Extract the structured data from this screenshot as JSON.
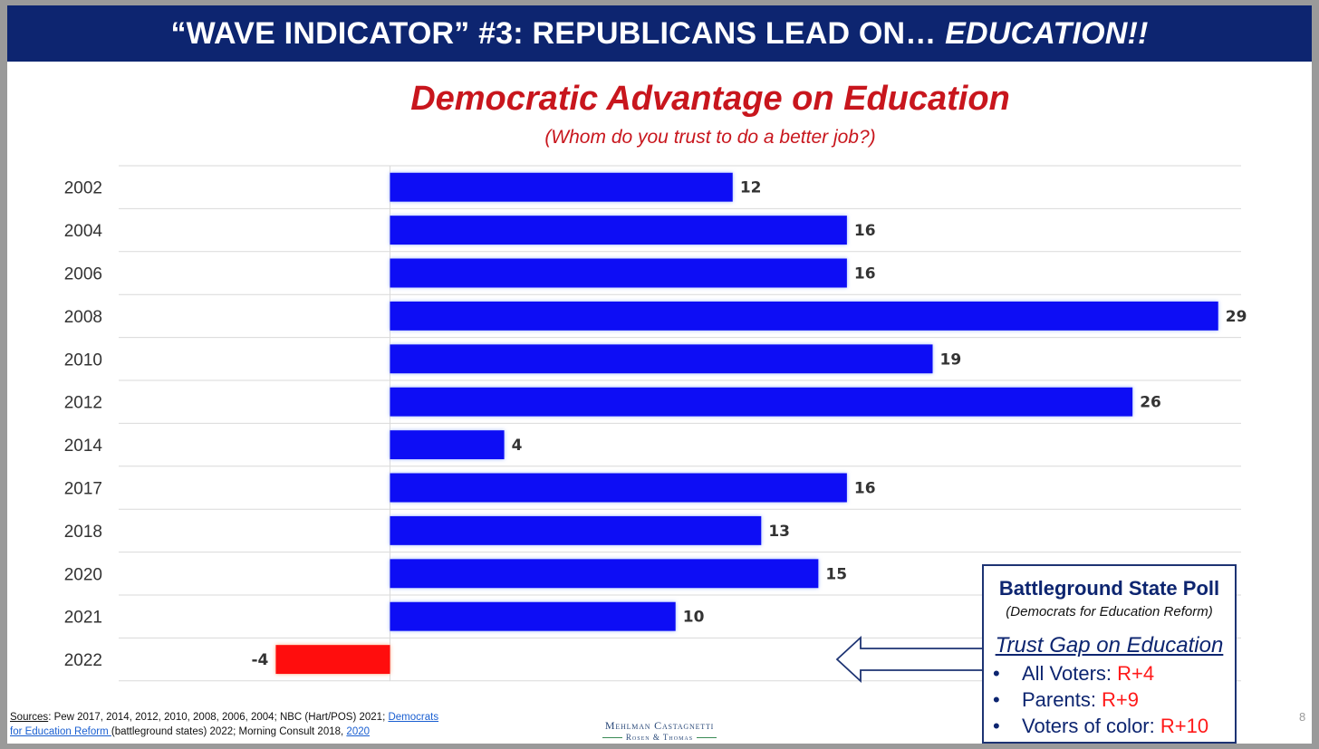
{
  "banner": {
    "title_main": "“WAVE INDICATOR” #3: REPUBLICANS LEAD ON… ",
    "title_emph": "EDUCATION!!"
  },
  "chart_data": {
    "type": "bar",
    "orientation": "horizontal",
    "title": "Democratic Advantage on Education",
    "subtitle": "(Whom do you trust to do a better job?)",
    "categories": [
      "2002",
      "2004",
      "2006",
      "2008",
      "2010",
      "2012",
      "2014",
      "2017",
      "2018",
      "2020",
      "2021",
      "2022"
    ],
    "values": [
      12,
      16,
      16,
      29,
      19,
      26,
      4,
      16,
      13,
      15,
      10,
      -4
    ],
    "value_labels": [
      "12",
      "16",
      "16",
      "29",
      "19",
      "26",
      "4",
      "16",
      "13",
      "15",
      "10",
      "-4"
    ],
    "xlim": [
      -9.5,
      29.8
    ],
    "grid": true,
    "legend": "none",
    "colors": {
      "positive": "#0a0af5",
      "negative": "#ff0e0e"
    }
  },
  "callout": {
    "title": "Battleground State Poll",
    "subtitle": "(Democrats for Education Reform)",
    "heading": "Trust Gap on Education",
    "bullet": "•",
    "items": [
      {
        "label": "All Voters: ",
        "value": "R+4"
      },
      {
        "label": "Parents: ",
        "value": "R+9"
      },
      {
        "label": "Voters of color: ",
        "value": "R+10"
      }
    ]
  },
  "sources": {
    "label": "Sources",
    "text1": ": Pew 2017, 2014, 2012, 2010, 2008, 2006, 2004; NBC (Hart/POS) 2021; ",
    "link1a": "Democrats",
    "link1b": "for Education Reform ",
    "text2": "(battleground states) 2022; Morning Consult 2018, ",
    "link2": "2020"
  },
  "logo": {
    "line1": "Mehlman Castagnetti",
    "line2": "Rosen & Thomas"
  },
  "page_number": "8"
}
